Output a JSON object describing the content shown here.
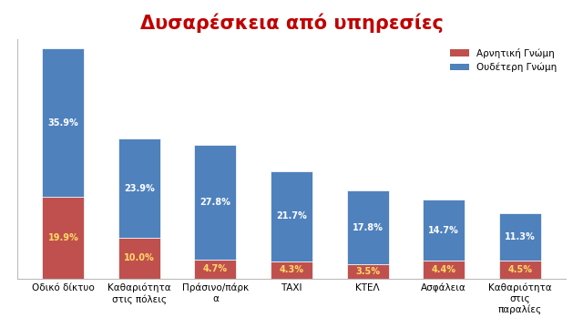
{
  "chart_data": {
    "type": "bar",
    "title": "Δυσαρέσκεια από υπηρεσίες",
    "categories": [
      "Οδικό δίκτυο",
      "Καθαριότητα στις πόλεις",
      "Πράσινο/πάρκα",
      "ΤΑΧΙ",
      "ΚΤΕΛ",
      "Ασφάλεια",
      "Καθαριότητα στις παραλίες"
    ],
    "stacked": true,
    "data_labels": true,
    "tick_labels": "x",
    "legend": "upper right",
    "ylim": [
      0,
      58
    ],
    "series": [
      {
        "name": "Αρνητική Γνώμη",
        "color": "#C0504D",
        "values": [
          19.9,
          10.0,
          4.7,
          4.3,
          3.5,
          4.4,
          4.5
        ],
        "value_labels": [
          "19.9%",
          "10.0%",
          "4.7%",
          "4.3%",
          "3.5%",
          "4.4%",
          "4.5%"
        ]
      },
      {
        "name": "Ουδέτερη Γνώμη",
        "color": "#4F81BD",
        "values": [
          35.9,
          23.9,
          27.8,
          21.7,
          17.8,
          14.7,
          11.3
        ],
        "value_labels": [
          "35.9%",
          "23.9%",
          "27.8%",
          "21.7%",
          "17.8%",
          "14.7%",
          "11.3%"
        ]
      }
    ]
  }
}
